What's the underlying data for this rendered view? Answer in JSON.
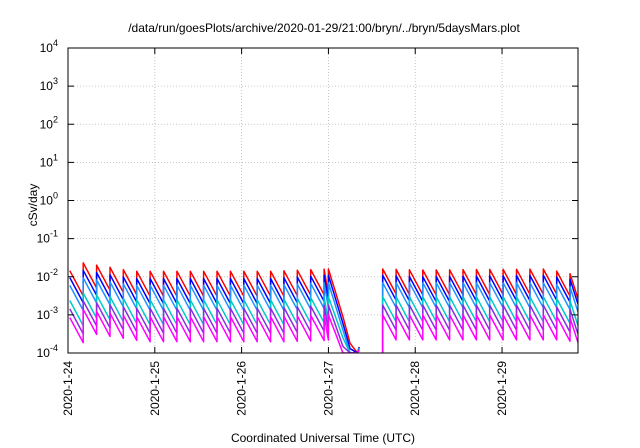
{
  "chart_data": {
    "type": "line",
    "title": "/data/run/goesPlots/archive/2020-01-29/21:00/bryn/../bryn/5daysMars.plot",
    "xlabel": "Coordinated Universal Time (UTC)",
    "ylabel": "cSv/day",
    "y_scale": "log",
    "ylim": [
      0.0001,
      10000
    ],
    "xlim": [
      "2020-01-24T00:00",
      "2020-01-29T21:00"
    ],
    "grid": true,
    "legend": "none",
    "y_ticks": [
      {
        "base": "10",
        "exp": "-4"
      },
      {
        "base": "10",
        "exp": "-3"
      },
      {
        "base": "10",
        "exp": "-2"
      },
      {
        "base": "10",
        "exp": "-1"
      },
      {
        "base": "10",
        "exp": "0"
      },
      {
        "base": "10",
        "exp": "1"
      },
      {
        "base": "10",
        "exp": "2"
      },
      {
        "base": "10",
        "exp": "3"
      },
      {
        "base": "10",
        "exp": "4"
      }
    ],
    "x_ticks": [
      "2020-1-24",
      "2020-1-25",
      "2020-1-26",
      "2020-1-27",
      "2020-1-28",
      "2020-1-29"
    ],
    "data_gap": [
      "2020-01-27T08:30",
      "2020-01-27T15:00"
    ],
    "series": [
      {
        "color": "#ff0000",
        "trend": {
          "x": [
            "2020-01-24T00:00",
            "2020-01-24T02:00",
            "2020-01-24T18:00",
            "2020-01-26T08:00",
            "2020-01-27T00:00",
            "2020-01-27T04:00",
            "2020-01-27T06:00",
            "2020-01-27T08:00",
            "2020-01-27T15:00",
            "2020-01-28T00:00",
            "2020-01-29T12:00",
            "2020-01-29T21:00"
          ],
          "y": [
            0.012,
            0.025,
            0.014,
            0.014,
            0.016,
            0.0009,
            0.00018,
            0.0001,
            0.016,
            0.015,
            0.016,
            0.011
          ]
        }
      },
      {
        "color": "#0000ff",
        "trend": {
          "x": [
            "2020-01-24T00:00",
            "2020-01-24T02:00",
            "2020-01-24T18:00",
            "2020-01-26T08:00",
            "2020-01-27T00:00",
            "2020-01-27T04:00",
            "2020-01-27T06:00",
            "2020-01-27T08:00",
            "2020-01-27T15:00",
            "2020-01-28T00:00",
            "2020-01-29T12:00",
            "2020-01-29T21:00"
          ],
          "y": [
            0.008,
            0.016,
            0.009,
            0.009,
            0.011,
            0.0006,
            0.00013,
            0.0001,
            0.011,
            0.01,
            0.011,
            0.008
          ]
        }
      },
      {
        "color": "#1e90ff",
        "trend": {
          "x": [
            "2020-01-24T00:00",
            "2020-01-24T02:00",
            "2020-01-24T18:00",
            "2020-01-26T08:00",
            "2020-01-27T00:00",
            "2020-01-27T04:00",
            "2020-01-27T06:00",
            "2020-01-27T08:00",
            "2020-01-27T15:00",
            "2020-01-28T00:00",
            "2020-01-29T12:00",
            "2020-01-29T21:00"
          ],
          "y": [
            0.005,
            0.01,
            0.006,
            0.006,
            0.007,
            0.0004,
            0.0001,
            0.0001,
            0.007,
            0.007,
            0.007,
            0.005
          ]
        }
      },
      {
        "color": "#00c8c8",
        "trend": {
          "x": [
            "2020-01-24T00:00",
            "2020-01-24T02:00",
            "2020-01-24T18:00",
            "2020-01-26T08:00",
            "2020-01-27T00:00",
            "2020-01-27T04:00",
            "2020-01-27T06:00",
            "2020-01-27T08:00",
            "2020-01-27T15:00",
            "2020-01-28T00:00",
            "2020-01-29T12:00",
            "2020-01-29T21:00"
          ],
          "y": [
            0.002,
            0.004,
            0.0025,
            0.0025,
            0.003,
            0.00025,
            0.0001,
            0.0001,
            0.003,
            0.003,
            0.003,
            0.0022
          ]
        }
      },
      {
        "color": "#8a2be2",
        "trend": {
          "x": [
            "2020-01-24T00:00",
            "2020-01-24T02:00",
            "2020-01-24T18:00",
            "2020-01-26T08:00",
            "2020-01-27T00:00",
            "2020-01-27T04:00",
            "2020-01-27T06:00",
            "2020-01-27T08:00",
            "2020-01-27T15:00",
            "2020-01-28T00:00",
            "2020-01-29T12:00",
            "2020-01-29T21:00"
          ],
          "y": [
            0.0012,
            0.0025,
            0.0015,
            0.0015,
            0.0018,
            0.00015,
            0.0001,
            0.0001,
            0.0018,
            0.0018,
            0.0018,
            0.0013
          ]
        }
      },
      {
        "color": "#ff00ff",
        "trend": {
          "x": [
            "2020-01-24T00:00",
            "2020-01-24T02:00",
            "2020-01-24T18:00",
            "2020-01-26T08:00",
            "2020-01-27T00:00",
            "2020-01-27T04:00",
            "2020-01-27T06:00",
            "2020-01-27T08:00",
            "2020-01-27T15:00",
            "2020-01-28T00:00",
            "2020-01-29T12:00",
            "2020-01-29T21:00"
          ],
          "y": [
            0.0007,
            0.0015,
            0.0009,
            0.0009,
            0.001,
            0.0001,
            0.0001,
            0.0001,
            0.001,
            0.001,
            0.001,
            0.0008
          ]
        }
      }
    ],
    "sawtooth_period_hours": 3.7,
    "sawtooth_drop_ratio": 0.22
  }
}
